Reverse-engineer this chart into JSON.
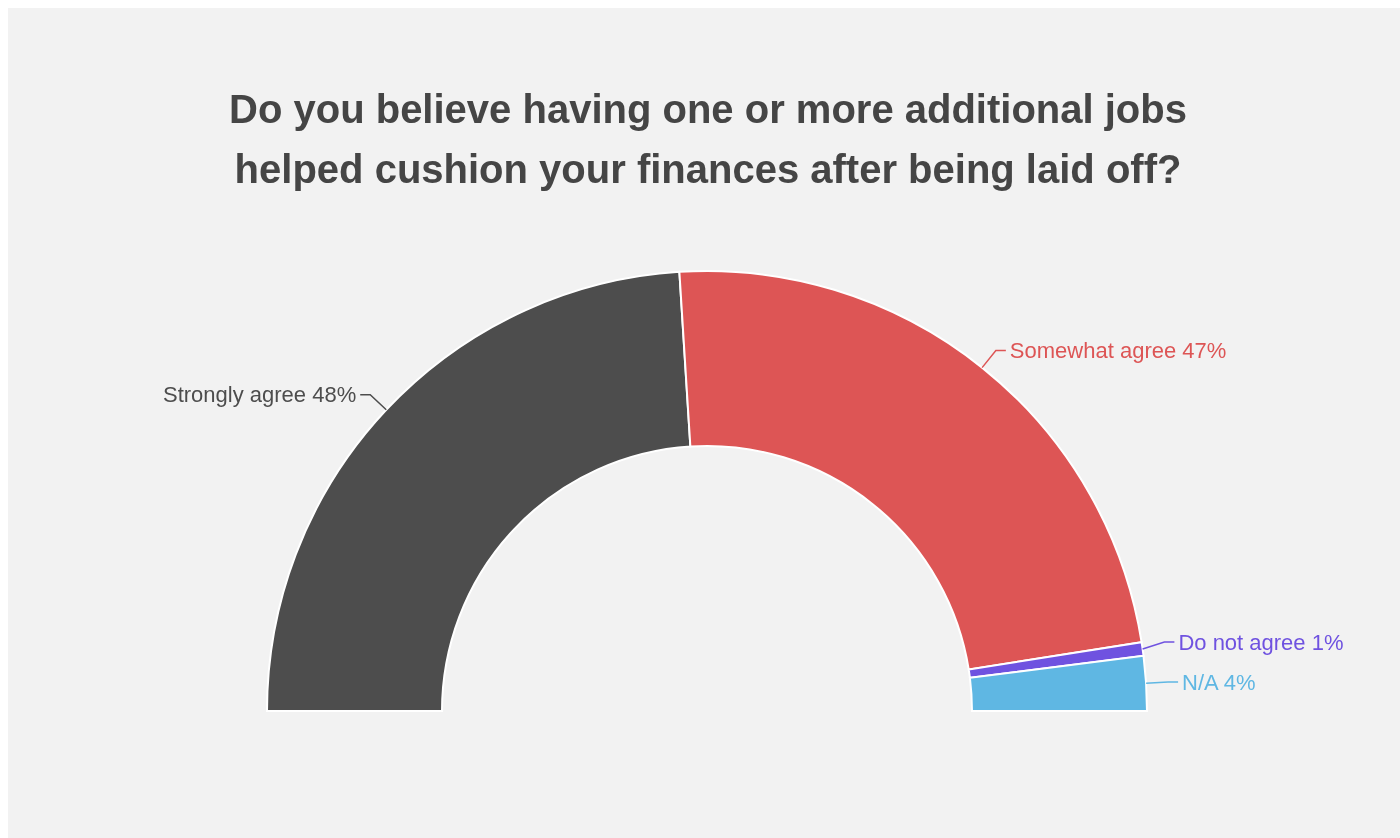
{
  "chart_data": {
    "type": "donut",
    "title": "Do you believe having one or more additional jobs helped cushion your finances after being laid off?",
    "categories": [
      "Strongly agree",
      "Somewhat agree",
      "Do not agree",
      "N/A"
    ],
    "values": [
      48,
      47,
      1,
      4
    ],
    "value_labels": [
      "48%",
      "47%",
      "1%",
      "4%"
    ],
    "colors": [
      "#4d4d4d",
      "#dd5555",
      "#6f52e0",
      "#5fb7e3"
    ]
  }
}
